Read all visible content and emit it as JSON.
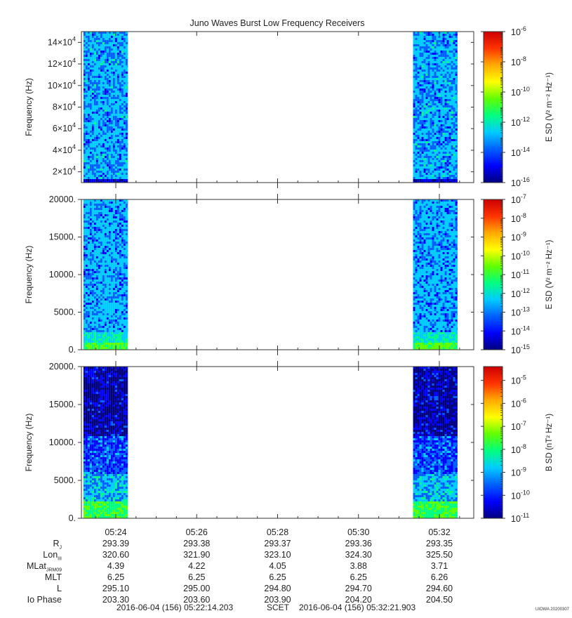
{
  "title": "Juno Waves Burst Low Frequency Receivers",
  "chart_data": [
    {
      "type": "heatmap",
      "ylabel": "Frequency (Hz)",
      "ylim": [
        10000,
        150000
      ],
      "yticks": [
        {
          "value": 20000,
          "mant": "2",
          "exp": "4"
        },
        {
          "value": 40000,
          "mant": "4",
          "exp": "4"
        },
        {
          "value": 60000,
          "mant": "6",
          "exp": "4"
        },
        {
          "value": 80000,
          "mant": "8",
          "exp": "4"
        },
        {
          "value": 100000,
          "mant": "10",
          "exp": "4"
        },
        {
          "value": 120000,
          "mant": "12",
          "exp": "4"
        },
        {
          "value": 140000,
          "mant": "14",
          "exp": "4"
        }
      ],
      "colorbar": {
        "label": "E SD (V² m⁻² Hz⁻¹)",
        "scale": "log",
        "range_exp": [
          -16,
          -6
        ],
        "ticks_exp": [
          "-6",
          "-8",
          "-10",
          "-12",
          "-14",
          "-16"
        ]
      },
      "data_intervals_minutes": [
        [
          23.2,
          24.3
        ],
        [
          31.35,
          32.45
        ]
      ]
    },
    {
      "type": "heatmap",
      "ylabel": "Frequency (Hz)",
      "ylim": [
        0,
        20000
      ],
      "yticks": [
        {
          "value": 0,
          "label": "0."
        },
        {
          "value": 5000,
          "label": "5000."
        },
        {
          "value": 10000,
          "label": "10000."
        },
        {
          "value": 15000,
          "label": "15000."
        },
        {
          "value": 20000,
          "label": "20000."
        }
      ],
      "colorbar": {
        "label": "E SD (V² m⁻² Hz⁻¹)",
        "scale": "log",
        "range_exp": [
          -15,
          -7
        ],
        "ticks_exp": [
          "-7",
          "-8",
          "-9",
          "-10",
          "-11",
          "-12",
          "-13",
          "-14",
          "-15"
        ]
      },
      "data_intervals_minutes": [
        [
          23.2,
          24.3
        ],
        [
          31.35,
          32.45
        ]
      ]
    },
    {
      "type": "heatmap",
      "ylabel": "Frequency (Hz)",
      "ylim": [
        0,
        20000
      ],
      "yticks": [
        {
          "value": 0,
          "label": "0."
        },
        {
          "value": 5000,
          "label": "5000."
        },
        {
          "value": 10000,
          "label": "10000."
        },
        {
          "value": 15000,
          "label": "15000."
        },
        {
          "value": 20000,
          "label": "20000."
        }
      ],
      "colorbar": {
        "label": "B SD (nT² Hz⁻¹)",
        "scale": "log",
        "range_exp": [
          -11,
          -4.4
        ],
        "ticks_exp": [
          "-5",
          "-6",
          "-7",
          "-8",
          "-9",
          "-10",
          "-11"
        ]
      },
      "data_intervals_minutes": [
        [
          23.2,
          24.3
        ],
        [
          31.35,
          32.45
        ]
      ]
    }
  ],
  "time_axis": {
    "range_minutes": [
      23.15,
      32.85
    ],
    "ticks": [
      {
        "minute": 24,
        "label": "05:24"
      },
      {
        "minute": 26,
        "label": "05:26"
      },
      {
        "minute": 28,
        "label": "05:28"
      },
      {
        "minute": 30,
        "label": "05:30"
      },
      {
        "minute": 32,
        "label": "05:32"
      }
    ]
  },
  "ephemeris": [
    {
      "label": "R",
      "sub": "J",
      "values": [
        "293.39",
        "293.38",
        "293.37",
        "293.36",
        "293.35"
      ]
    },
    {
      "label": "Lon",
      "sub": "III",
      "values": [
        "320.60",
        "321.90",
        "323.10",
        "324.30",
        "325.50"
      ]
    },
    {
      "label": "MLat",
      "sub": "JRM09",
      "values": [
        "4.39",
        "4.22",
        "4.05",
        "3.88",
        "3.71"
      ]
    },
    {
      "label": "MLT",
      "sub": "",
      "values": [
        "6.25",
        "6.25",
        "6.25",
        "6.25",
        "6.26"
      ]
    },
    {
      "label": "L",
      "sub": "",
      "values": [
        "295.10",
        "295.00",
        "294.80",
        "294.70",
        "294.60"
      ]
    },
    {
      "label": "Io Phase",
      "sub": "",
      "values": [
        "203.30",
        "203.60",
        "203.90",
        "204.20",
        "204.50"
      ]
    }
  ],
  "footer": {
    "start": "2016-06-04 (156) 05:22:14.203",
    "scet": "SCET",
    "end": "2016-06-04 (156) 05:32:21.903"
  },
  "credit": "UIOWA 20200307",
  "colors": {
    "spectrum": [
      "#00007f",
      "#0000ff",
      "#0060ff",
      "#00ccff",
      "#00ff80",
      "#60ff00",
      "#ffff00",
      "#ffaa00",
      "#ff3300",
      "#cc0000"
    ]
  }
}
